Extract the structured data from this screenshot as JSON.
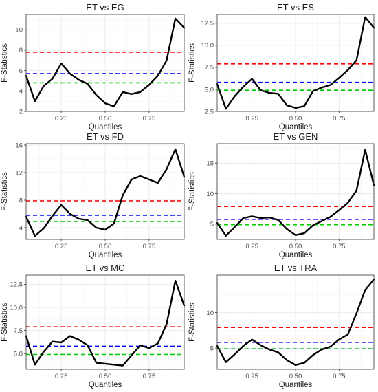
{
  "figure": {
    "background": "#ffffff"
  },
  "style": {
    "panel_border": "#333333",
    "grid_major": "#ebebeb",
    "grid_minor": "#f5f5f5",
    "line_color": "#000000"
  },
  "chart_data": [
    {
      "type": "line",
      "title": "ET vs EG",
      "xlabel": "Quantiles",
      "ylabel": "F-Statistics",
      "grid": true,
      "xlim": [
        0.05,
        0.95
      ],
      "ylim": [
        2.0,
        11.5
      ],
      "xticks": [
        0.25,
        0.5,
        0.75
      ],
      "xtick_labels": [
        "0.25",
        "0.50",
        "0.75"
      ],
      "yticks": [
        2,
        4,
        6,
        8,
        10
      ],
      "ytick_labels": [
        "2",
        "4",
        "6",
        "8",
        "10"
      ],
      "hlines": [
        {
          "value": 7.8,
          "color": "#ff0000",
          "style": "dashed"
        },
        {
          "value": 5.7,
          "color": "#0000ff",
          "style": "dashed"
        },
        {
          "value": 4.8,
          "color": "#00cc00",
          "style": "dashed"
        }
      ],
      "series": [
        {
          "color": "#000000",
          "x": [
            0.05,
            0.1,
            0.15,
            0.2,
            0.25,
            0.3,
            0.35,
            0.4,
            0.45,
            0.5,
            0.55,
            0.6,
            0.65,
            0.7,
            0.75,
            0.8,
            0.85,
            0.9,
            0.95
          ],
          "y": [
            5.5,
            3.0,
            4.5,
            5.2,
            6.7,
            5.7,
            5.1,
            4.7,
            3.6,
            2.8,
            2.5,
            3.9,
            3.7,
            3.9,
            4.6,
            5.5,
            7.0,
            11.1,
            10.2
          ]
        }
      ]
    },
    {
      "type": "line",
      "title": "ET vs ES",
      "xlabel": "Quantiles",
      "ylabel": "F-Statistics",
      "grid": true,
      "xlim": [
        0.05,
        0.95
      ],
      "ylim": [
        2.5,
        13.5
      ],
      "xticks": [
        0.25,
        0.5,
        0.75
      ],
      "xtick_labels": [
        "0.25",
        "0.50",
        "0.75"
      ],
      "yticks": [
        2.5,
        5.0,
        7.5,
        10.0,
        12.5
      ],
      "ytick_labels": [
        "2.5",
        "5.0",
        "7.5",
        "10.0",
        "12.5"
      ],
      "hlines": [
        {
          "value": 7.9,
          "color": "#ff0000",
          "style": "dashed"
        },
        {
          "value": 5.8,
          "color": "#0000ff",
          "style": "dashed"
        },
        {
          "value": 4.9,
          "color": "#00cc00",
          "style": "dashed"
        }
      ],
      "series": [
        {
          "color": "#000000",
          "x": [
            0.05,
            0.1,
            0.15,
            0.2,
            0.25,
            0.3,
            0.35,
            0.4,
            0.45,
            0.5,
            0.55,
            0.6,
            0.65,
            0.7,
            0.75,
            0.8,
            0.85,
            0.9,
            0.95
          ],
          "y": [
            5.6,
            2.8,
            4.2,
            5.3,
            6.2,
            4.9,
            4.6,
            4.5,
            3.2,
            2.9,
            3.1,
            4.8,
            5.2,
            5.5,
            6.3,
            7.2,
            8.3,
            13.2,
            12.0
          ]
        }
      ]
    },
    {
      "type": "line",
      "title": "ET vs FD",
      "xlabel": "Quantiles",
      "ylabel": "F-Statistics",
      "grid": true,
      "xlim": [
        0.05,
        0.95
      ],
      "ylim": [
        2.3,
        16.2
      ],
      "xticks": [
        0.25,
        0.5,
        0.75
      ],
      "xtick_labels": [
        "0.25",
        "0.50",
        "0.75"
      ],
      "yticks": [
        4,
        8,
        12,
        16
      ],
      "ytick_labels": [
        "4",
        "8",
        "12",
        "16"
      ],
      "hlines": [
        {
          "value": 7.9,
          "color": "#ff0000",
          "style": "dashed"
        },
        {
          "value": 5.8,
          "color": "#0000ff",
          "style": "dashed"
        },
        {
          "value": 4.9,
          "color": "#00cc00",
          "style": "dashed"
        }
      ],
      "series": [
        {
          "color": "#000000",
          "x": [
            0.05,
            0.1,
            0.15,
            0.2,
            0.25,
            0.3,
            0.35,
            0.4,
            0.45,
            0.5,
            0.55,
            0.6,
            0.65,
            0.7,
            0.75,
            0.8,
            0.85,
            0.9,
            0.95
          ],
          "y": [
            5.6,
            2.8,
            3.9,
            5.7,
            7.3,
            6.0,
            5.3,
            5.1,
            4.0,
            3.7,
            4.6,
            8.7,
            11.0,
            11.5,
            11.0,
            10.5,
            12.5,
            15.4,
            11.4
          ]
        }
      ]
    },
    {
      "type": "line",
      "title": "ET vs GEN",
      "xlabel": "Quantiles",
      "ylabel": "F-Statistics",
      "grid": true,
      "xlim": [
        0.05,
        0.95
      ],
      "ylim": [
        2.5,
        18.2
      ],
      "xticks": [
        0.25,
        0.5,
        0.75
      ],
      "xtick_labels": [
        "0.25",
        "0.50",
        "0.75"
      ],
      "yticks": [
        5,
        10,
        15
      ],
      "ytick_labels": [
        "5",
        "10",
        "15"
      ],
      "hlines": [
        {
          "value": 7.9,
          "color": "#ff0000",
          "style": "dashed"
        },
        {
          "value": 5.8,
          "color": "#0000ff",
          "style": "dashed"
        },
        {
          "value": 4.9,
          "color": "#00cc00",
          "style": "dashed"
        }
      ],
      "series": [
        {
          "color": "#000000",
          "x": [
            0.05,
            0.1,
            0.15,
            0.2,
            0.25,
            0.3,
            0.35,
            0.4,
            0.45,
            0.5,
            0.55,
            0.6,
            0.65,
            0.7,
            0.75,
            0.8,
            0.85,
            0.9,
            0.95
          ],
          "y": [
            5.2,
            3.1,
            4.5,
            6.0,
            6.3,
            6.0,
            6.1,
            5.7,
            4.2,
            3.2,
            3.5,
            4.8,
            5.5,
            6.2,
            7.3,
            8.5,
            10.5,
            17.2,
            11.4
          ]
        }
      ]
    },
    {
      "type": "line",
      "title": "ET vs MC",
      "xlabel": "Quantiles",
      "ylabel": "F-Statistics",
      "grid": true,
      "xlim": [
        0.05,
        0.95
      ],
      "ylim": [
        3.3,
        13.5
      ],
      "xticks": [
        0.25,
        0.5,
        0.75
      ],
      "xtick_labels": [
        "0.25",
        "0.50",
        "0.75"
      ],
      "yticks": [
        5.0,
        7.5,
        10.0,
        12.5
      ],
      "ytick_labels": [
        "5.0",
        "7.5",
        "10.0",
        "12.5"
      ],
      "hlines": [
        {
          "value": 7.9,
          "color": "#ff0000",
          "style": "dashed"
        },
        {
          "value": 5.8,
          "color": "#0000ff",
          "style": "dashed"
        },
        {
          "value": 4.9,
          "color": "#00cc00",
          "style": "dashed"
        }
      ],
      "series": [
        {
          "color": "#000000",
          "x": [
            0.05,
            0.1,
            0.15,
            0.2,
            0.25,
            0.3,
            0.35,
            0.4,
            0.45,
            0.5,
            0.55,
            0.6,
            0.65,
            0.7,
            0.75,
            0.8,
            0.85,
            0.9,
            0.95
          ],
          "y": [
            6.9,
            3.8,
            5.2,
            6.3,
            6.2,
            6.9,
            6.5,
            5.9,
            4.0,
            3.9,
            3.8,
            3.7,
            4.8,
            5.9,
            5.6,
            6.1,
            8.2,
            12.9,
            10.2
          ]
        }
      ]
    },
    {
      "type": "line",
      "title": "ET vs TRA",
      "xlabel": "Quantiles",
      "ylabel": "F-Statistics",
      "grid": true,
      "xlim": [
        0.05,
        0.95
      ],
      "ylim": [
        2.0,
        15.3
      ],
      "xticks": [
        0.25,
        0.5,
        0.75
      ],
      "xtick_labels": [
        "0.25",
        "0.50",
        "0.75"
      ],
      "yticks": [
        5,
        10
      ],
      "ytick_labels": [
        "5",
        "10"
      ],
      "hlines": [
        {
          "value": 7.9,
          "color": "#ff0000",
          "style": "dashed"
        },
        {
          "value": 5.8,
          "color": "#0000ff",
          "style": "dashed"
        },
        {
          "value": 4.9,
          "color": "#00cc00",
          "style": "dashed"
        }
      ],
      "series": [
        {
          "color": "#000000",
          "x": [
            0.05,
            0.1,
            0.15,
            0.2,
            0.25,
            0.3,
            0.35,
            0.4,
            0.45,
            0.5,
            0.55,
            0.6,
            0.65,
            0.7,
            0.75,
            0.8,
            0.85,
            0.9,
            0.95
          ],
          "y": [
            5.3,
            3.0,
            4.1,
            5.3,
            6.2,
            5.4,
            4.8,
            4.4,
            3.3,
            2.6,
            2.9,
            4.0,
            4.8,
            5.2,
            6.2,
            6.9,
            9.9,
            13.2,
            14.7
          ]
        }
      ]
    }
  ]
}
